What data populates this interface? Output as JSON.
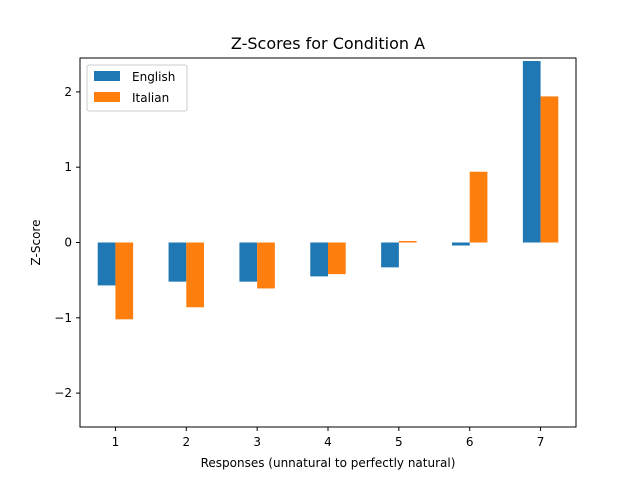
{
  "chart_data": {
    "type": "bar",
    "title": "Z-Scores for Condition A",
    "xlabel": "Responses (unnatural to perfectly natural)",
    "ylabel": "Z-Score",
    "categories": [
      "1",
      "2",
      "3",
      "4",
      "5",
      "6",
      "7"
    ],
    "series": [
      {
        "name": "English",
        "color": "#1f77b4",
        "values": [
          -0.57,
          -0.52,
          -0.52,
          -0.45,
          -0.33,
          -0.04,
          2.41
        ]
      },
      {
        "name": "Italian",
        "color": "#ff7f0e",
        "values": [
          -1.02,
          -0.86,
          -0.61,
          -0.42,
          0.02,
          0.94,
          1.94
        ]
      }
    ],
    "ylim": [
      -2.45,
      2.45
    ],
    "yticks": [
      -2,
      -1,
      0,
      1,
      2
    ],
    "yticks_labels": [
      "−2",
      "−1",
      "0",
      "1",
      "2"
    ],
    "grid": false,
    "legend_position": "top-left"
  }
}
